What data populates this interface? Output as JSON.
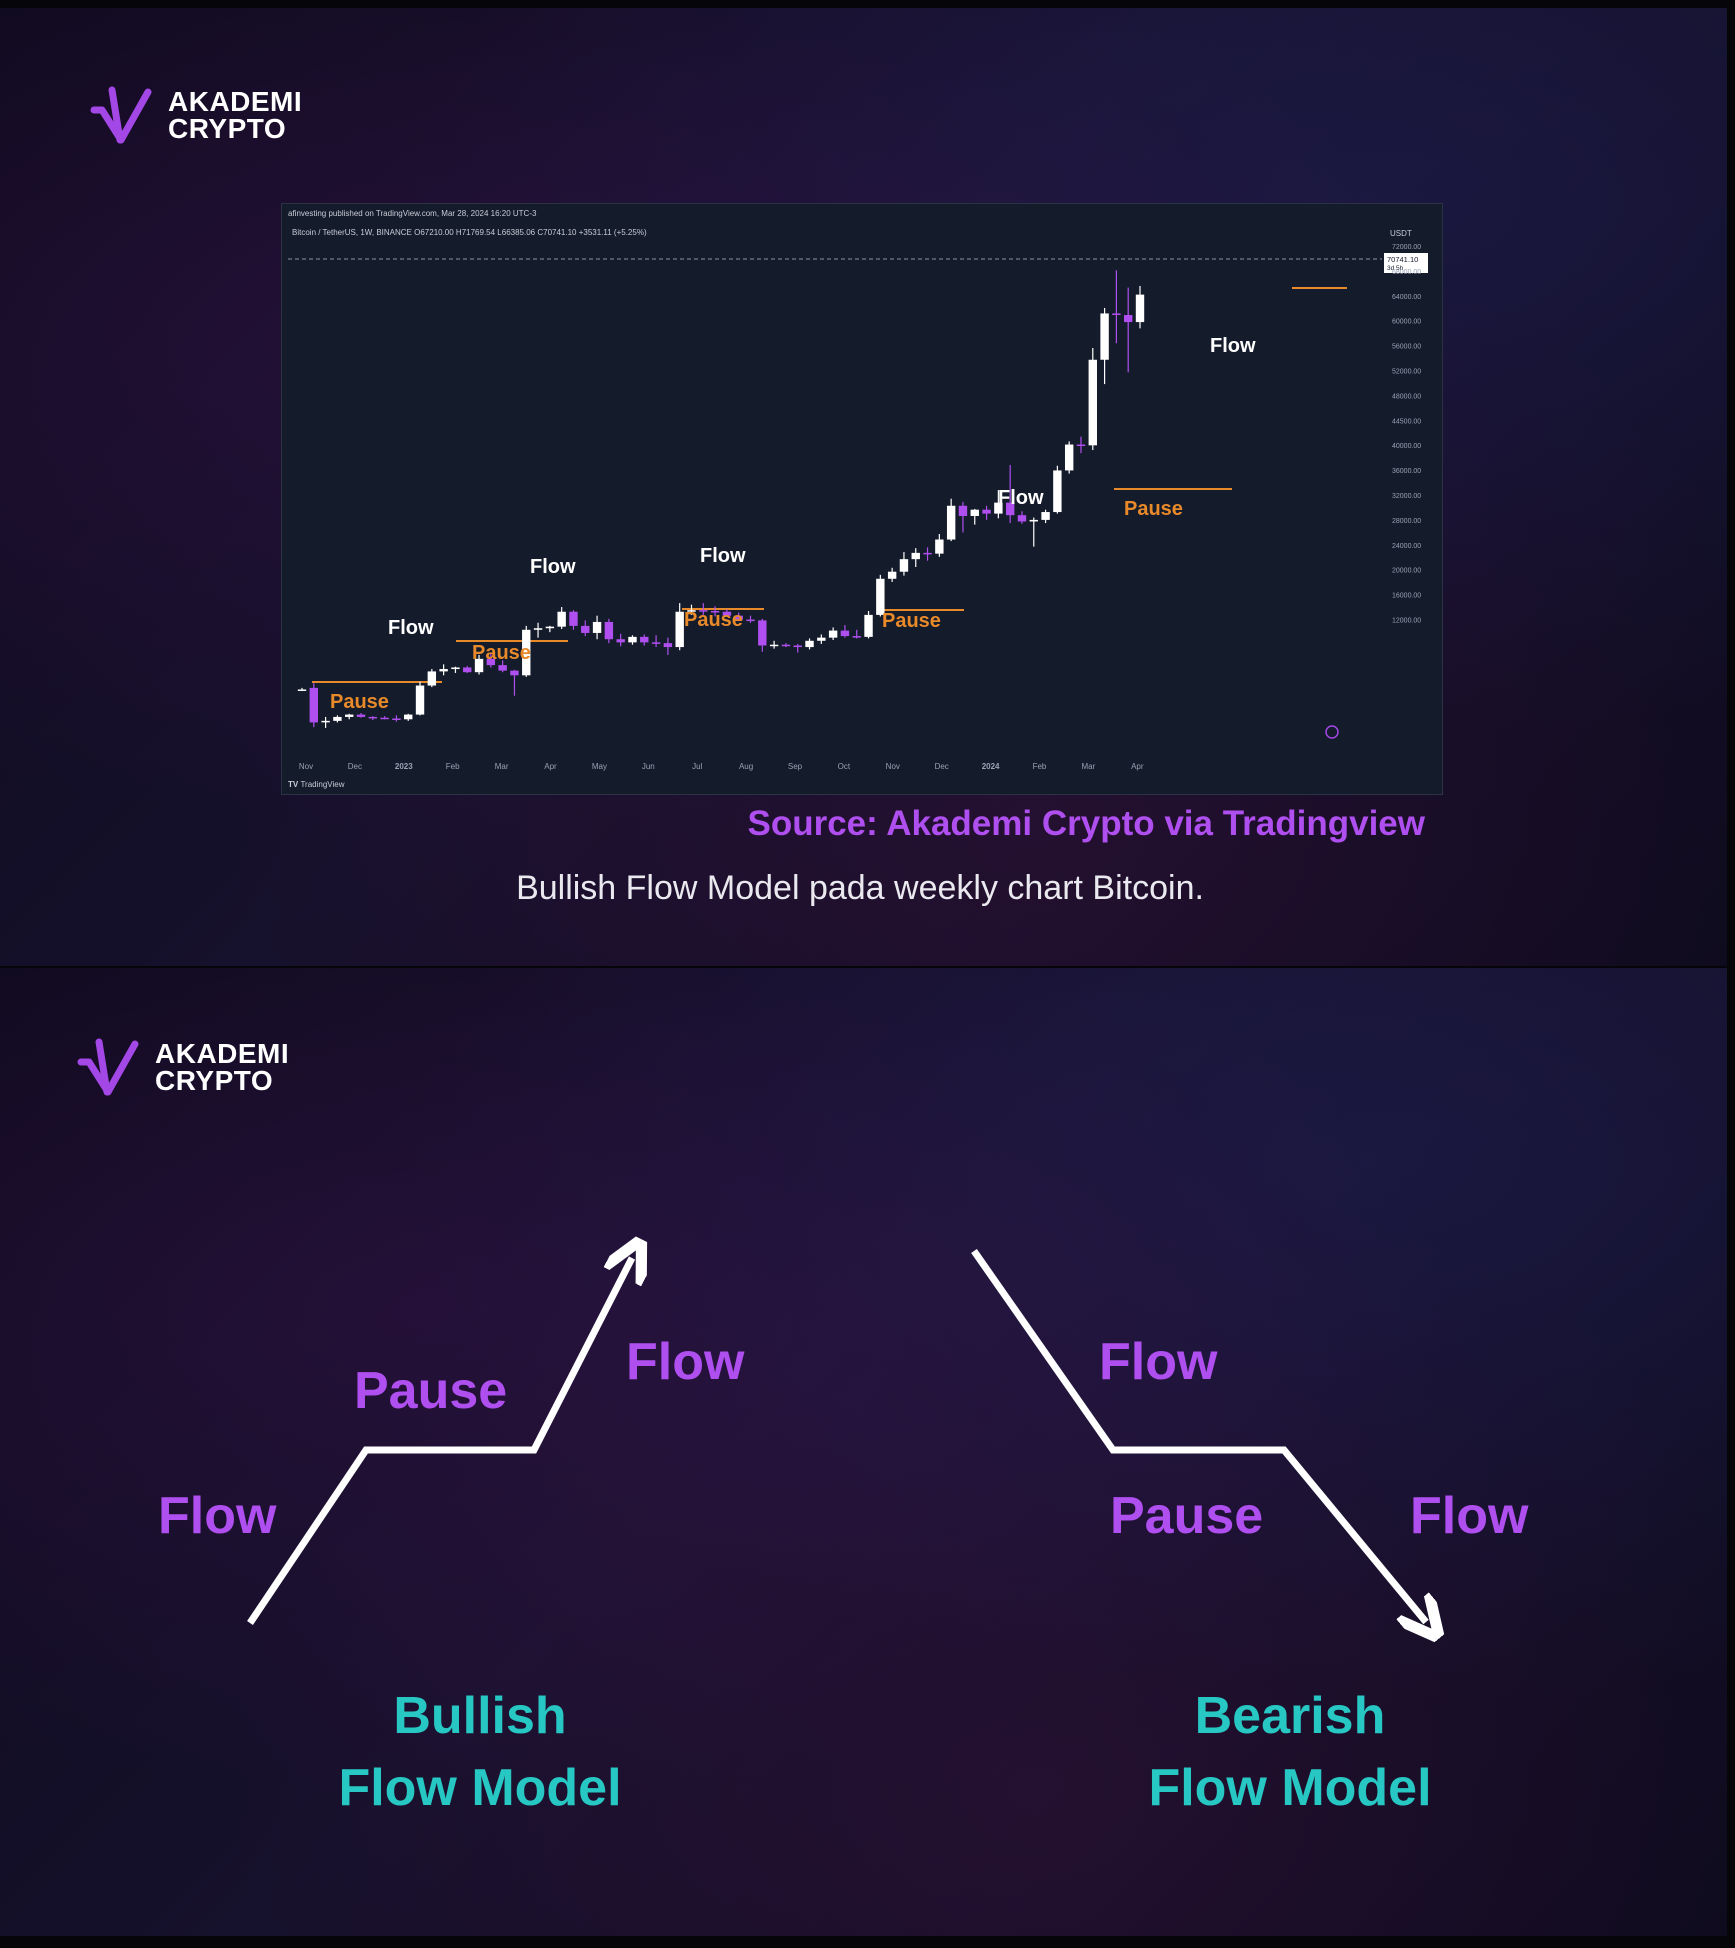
{
  "brand": {
    "line1": "AKADEMI",
    "line2": "CRYPTO",
    "accent": "#a347e6"
  },
  "chart": {
    "published": "afinvesting published on TradingView.com, Mar 28, 2024 16:20 UTC-3",
    "symbol_line": "Bitcoin / TetherUS, 1W, BINANCE  O67210.00 H71769.54 L66385.06 C70741.10 +3531.11 (+5.25%)",
    "currency": "USDT",
    "price_tag": "70741.10",
    "countdown": "3d 5h",
    "footer": "TradingView",
    "annotations": [
      {
        "text": "Flow",
        "color": "white"
      },
      {
        "text": "Flow",
        "color": "white"
      },
      {
        "text": "Flow",
        "color": "white"
      },
      {
        "text": "Flow",
        "color": "white"
      },
      {
        "text": "Flow",
        "color": "white"
      },
      {
        "text": "Pause",
        "color": "orange"
      },
      {
        "text": "Pause",
        "color": "orange"
      },
      {
        "text": "Pause",
        "color": "orange"
      },
      {
        "text": "Pause",
        "color": "orange"
      },
      {
        "text": "Pause",
        "color": "orange"
      }
    ]
  },
  "chart_data": {
    "type": "candlestick",
    "title": "Bitcoin / TetherUS, 1W, BINANCE",
    "xlabel": "",
    "ylabel": "USDT",
    "x_ticks": [
      "Nov",
      "Dec",
      "2023",
      "Feb",
      "Mar",
      "Apr",
      "May",
      "Jun",
      "Jul",
      "Aug",
      "Sep",
      "Oct",
      "Nov",
      "Dec",
      "2024",
      "Feb",
      "Mar",
      "Apr"
    ],
    "y_ticks": [
      "72000.00",
      "68000.00",
      "64000.00",
      "60000.00",
      "56000.00",
      "52000.00",
      "48000.00",
      "44500.00",
      "40000.00",
      "36000.00",
      "32000.00",
      "28000.00",
      "24000.00",
      "20000.00",
      "16000.00",
      "12000.00"
    ],
    "candles": [
      {
        "o": 20300,
        "h": 20600,
        "l": 20200,
        "c": 20400
      },
      {
        "o": 20600,
        "h": 21200,
        "l": 15600,
        "c": 16200
      },
      {
        "o": 16300,
        "h": 16900,
        "l": 15500,
        "c": 16400
      },
      {
        "o": 16400,
        "h": 17100,
        "l": 16200,
        "c": 16900
      },
      {
        "o": 16900,
        "h": 17300,
        "l": 16600,
        "c": 17200
      },
      {
        "o": 17200,
        "h": 17400,
        "l": 16800,
        "c": 16900
      },
      {
        "o": 16900,
        "h": 17000,
        "l": 16500,
        "c": 16800
      },
      {
        "o": 16800,
        "h": 17000,
        "l": 16600,
        "c": 16700
      },
      {
        "o": 16700,
        "h": 17100,
        "l": 16300,
        "c": 16600
      },
      {
        "o": 16600,
        "h": 17300,
        "l": 16400,
        "c": 17200
      },
      {
        "o": 17200,
        "h": 21400,
        "l": 17100,
        "c": 20900
      },
      {
        "o": 20900,
        "h": 23000,
        "l": 20700,
        "c": 22700
      },
      {
        "o": 22700,
        "h": 23600,
        "l": 22200,
        "c": 23000
      },
      {
        "o": 23000,
        "h": 23300,
        "l": 22500,
        "c": 23200
      },
      {
        "o": 23200,
        "h": 23400,
        "l": 22500,
        "c": 22600
      },
      {
        "o": 22600,
        "h": 24800,
        "l": 22300,
        "c": 24300
      },
      {
        "o": 24300,
        "h": 25000,
        "l": 23200,
        "c": 23500
      },
      {
        "o": 23500,
        "h": 24100,
        "l": 22600,
        "c": 22800
      },
      {
        "o": 22800,
        "h": 22900,
        "l": 19600,
        "c": 22200
      },
      {
        "o": 22200,
        "h": 28500,
        "l": 22000,
        "c": 28000
      },
      {
        "o": 28000,
        "h": 28900,
        "l": 27000,
        "c": 28200
      },
      {
        "o": 28200,
        "h": 28500,
        "l": 27700,
        "c": 28400
      },
      {
        "o": 28400,
        "h": 30900,
        "l": 28100,
        "c": 30300
      },
      {
        "o": 30300,
        "h": 30500,
        "l": 28000,
        "c": 28500
      },
      {
        "o": 28500,
        "h": 29200,
        "l": 27200,
        "c": 27600
      },
      {
        "o": 27600,
        "h": 29800,
        "l": 26800,
        "c": 29000
      },
      {
        "o": 29000,
        "h": 29400,
        "l": 26300,
        "c": 26800
      },
      {
        "o": 26800,
        "h": 27500,
        "l": 25900,
        "c": 26400
      },
      {
        "o": 26400,
        "h": 27300,
        "l": 26100,
        "c": 27100
      },
      {
        "o": 27100,
        "h": 27400,
        "l": 26000,
        "c": 26400
      },
      {
        "o": 26400,
        "h": 27300,
        "l": 25800,
        "c": 26300
      },
      {
        "o": 26300,
        "h": 27000,
        "l": 24800,
        "c": 25800
      },
      {
        "o": 25800,
        "h": 31400,
        "l": 25400,
        "c": 30300
      },
      {
        "o": 30300,
        "h": 31200,
        "l": 29900,
        "c": 30500
      },
      {
        "o": 30500,
        "h": 31400,
        "l": 29900,
        "c": 30400
      },
      {
        "o": 30400,
        "h": 31000,
        "l": 29700,
        "c": 30300
      },
      {
        "o": 30300,
        "h": 30600,
        "l": 29700,
        "c": 29800
      },
      {
        "o": 29800,
        "h": 30200,
        "l": 29100,
        "c": 29300
      },
      {
        "o": 29300,
        "h": 29800,
        "l": 28900,
        "c": 29200
      },
      {
        "o": 29200,
        "h": 29400,
        "l": 25200,
        "c": 26000
      },
      {
        "o": 26000,
        "h": 26600,
        "l": 25600,
        "c": 26100
      },
      {
        "o": 26100,
        "h": 26300,
        "l": 25800,
        "c": 26000
      },
      {
        "o": 26000,
        "h": 26200,
        "l": 25100,
        "c": 25800
      },
      {
        "o": 25800,
        "h": 26900,
        "l": 25500,
        "c": 26600
      },
      {
        "o": 26600,
        "h": 27400,
        "l": 26200,
        "c": 27000
      },
      {
        "o": 27000,
        "h": 28300,
        "l": 26700,
        "c": 27900
      },
      {
        "o": 27900,
        "h": 28600,
        "l": 27000,
        "c": 27200
      },
      {
        "o": 27200,
        "h": 28000,
        "l": 26900,
        "c": 27100
      },
      {
        "o": 27100,
        "h": 30400,
        "l": 26900,
        "c": 29900
      },
      {
        "o": 29900,
        "h": 35000,
        "l": 29700,
        "c": 34500
      },
      {
        "o": 34500,
        "h": 35900,
        "l": 34100,
        "c": 35400
      },
      {
        "o": 35400,
        "h": 37900,
        "l": 34900,
        "c": 37000
      },
      {
        "o": 37000,
        "h": 38400,
        "l": 36000,
        "c": 37800
      },
      {
        "o": 37800,
        "h": 38500,
        "l": 36800,
        "c": 37700
      },
      {
        "o": 37700,
        "h": 40200,
        "l": 37300,
        "c": 39500
      },
      {
        "o": 39500,
        "h": 44700,
        "l": 39300,
        "c": 43800
      },
      {
        "o": 43800,
        "h": 44300,
        "l": 40400,
        "c": 42500
      },
      {
        "o": 42500,
        "h": 43400,
        "l": 41400,
        "c": 43300
      },
      {
        "o": 43300,
        "h": 43800,
        "l": 42000,
        "c": 42800
      },
      {
        "o": 42800,
        "h": 45800,
        "l": 42200,
        "c": 44200
      },
      {
        "o": 44200,
        "h": 49000,
        "l": 41600,
        "c": 42600
      },
      {
        "o": 42600,
        "h": 43100,
        "l": 41500,
        "c": 41800
      },
      {
        "o": 41800,
        "h": 42300,
        "l": 38600,
        "c": 42000
      },
      {
        "o": 42000,
        "h": 43300,
        "l": 41600,
        "c": 43000
      },
      {
        "o": 43000,
        "h": 48900,
        "l": 42800,
        "c": 48300
      },
      {
        "o": 48300,
        "h": 52000,
        "l": 47900,
        "c": 51600
      },
      {
        "o": 51600,
        "h": 52600,
        "l": 50500,
        "c": 51500
      },
      {
        "o": 51500,
        "h": 63900,
        "l": 50900,
        "c": 62400
      },
      {
        "o": 62400,
        "h": 69000,
        "l": 59300,
        "c": 68300
      },
      {
        "o": 68300,
        "h": 73800,
        "l": 64500,
        "c": 68100
      },
      {
        "o": 68100,
        "h": 71600,
        "l": 60800,
        "c": 67200
      },
      {
        "o": 67200,
        "h": 71800,
        "l": 66400,
        "c": 70700
      }
    ],
    "annotations": [
      {
        "label": "Pause",
        "range": "Nov–Dec 2022"
      },
      {
        "label": "Flow",
        "range": "Jan 2023"
      },
      {
        "label": "Pause",
        "range": "Feb–Mar 2023"
      },
      {
        "label": "Flow",
        "range": "Mar 2023"
      },
      {
        "label": "Pause",
        "range": "Apr–Jun 2023"
      },
      {
        "label": "Flow",
        "range": "Jun 2023"
      },
      {
        "label": "Pause",
        "range": "Aug–Oct 2023"
      },
      {
        "label": "Flow",
        "range": "Oct–Dec 2023"
      },
      {
        "label": "Pause",
        "range": "Dec 2023–Jan 2024"
      },
      {
        "label": "Flow",
        "range": "Feb–Mar 2024"
      }
    ]
  },
  "source": "Source: Akademi Crypto via Tradingview",
  "caption": "Bullish Flow Model pada weekly chart Bitcoin.",
  "diagram": {
    "bullish": {
      "flow1": "Flow",
      "pause": "Pause",
      "flow2": "Flow",
      "title1": "Bullish",
      "title2": "Flow Model"
    },
    "bearish": {
      "flow1": "Flow",
      "pause": "Pause",
      "flow2": "Flow",
      "title1": "Bearish",
      "title2": "Flow Model"
    },
    "colors": {
      "label": "#b04ff0",
      "title": "#27c7c3",
      "arrow": "#ffffff"
    }
  }
}
